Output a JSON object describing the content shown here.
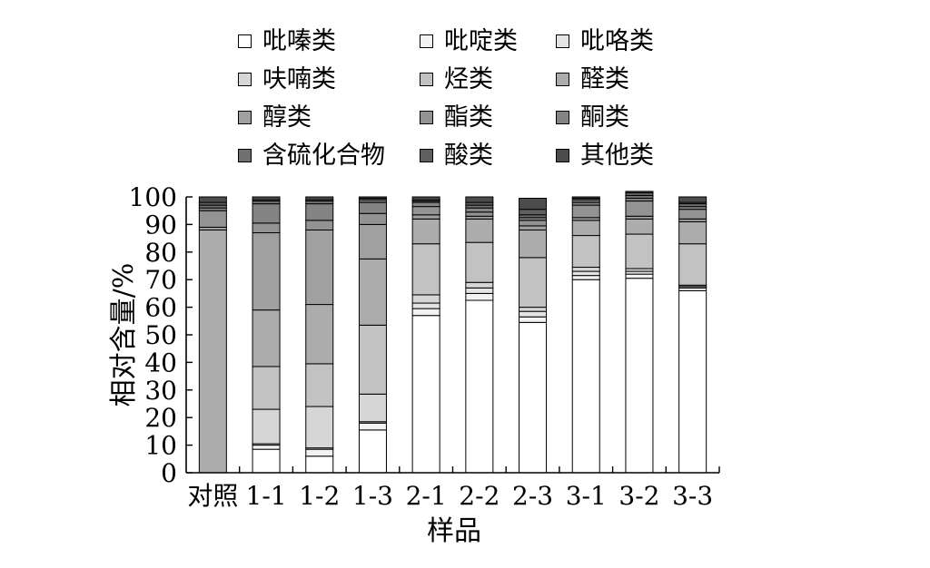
{
  "chart_data": {
    "type": "bar",
    "stacked": true,
    "title": "",
    "xlabel": "样品",
    "ylabel": "相对含量/%",
    "ylim": [
      0,
      100
    ],
    "yticks": [
      0,
      10,
      20,
      30,
      40,
      50,
      60,
      70,
      80,
      90,
      100
    ],
    "categories": [
      "对照",
      "1-1",
      "1-2",
      "1-3",
      "2-1",
      "2-2",
      "2-3",
      "3-1",
      "3-2",
      "3-3"
    ],
    "legend_position": "top",
    "series": [
      {
        "name": "吡嗪类",
        "color": "#ffffff",
        "values": [
          0,
          8.5,
          6,
          15.5,
          57,
          62.5,
          54.5,
          70,
          70.5,
          66
        ]
      },
      {
        "name": "吡啶类",
        "color": "#f2f2f2",
        "values": [
          0,
          1.5,
          2.5,
          2.5,
          2.5,
          2.5,
          2,
          1.5,
          1.5,
          1
        ]
      },
      {
        "name": "吡咯类",
        "color": "#e4e4e4",
        "values": [
          0,
          0.5,
          0.5,
          0.5,
          2,
          2,
          2,
          1.5,
          1,
          0.5
        ]
      },
      {
        "name": "呋喃类",
        "color": "#d6d6d6",
        "values": [
          0,
          12.5,
          15,
          10,
          3,
          2,
          1.5,
          1.5,
          1,
          0.5
        ]
      },
      {
        "name": "烃类",
        "color": "#c2c2c2",
        "values": [
          0,
          15.5,
          15.5,
          25,
          18.5,
          14.5,
          18,
          11.5,
          12.5,
          15
        ]
      },
      {
        "name": "醛类",
        "color": "#acacac",
        "values": [
          88,
          20.5,
          21.5,
          24,
          9,
          8.5,
          10,
          5.5,
          5.5,
          8
        ]
      },
      {
        "name": "醇类",
        "color": "#a0a0a0",
        "values": [
          1,
          28,
          27,
          12.5,
          1.5,
          1,
          1.5,
          1,
          1,
          1
        ]
      },
      {
        "name": "酯类",
        "color": "#939393",
        "values": [
          6,
          3.5,
          3.5,
          4,
          3,
          1.5,
          2,
          4.5,
          5.5,
          3.5
        ]
      },
      {
        "name": "酮类",
        "color": "#848484",
        "values": [
          1,
          7,
          6,
          4,
          1.5,
          1.5,
          1,
          1,
          1,
          1
        ]
      },
      {
        "name": "含硫化合物",
        "color": "#707070",
        "values": [
          1,
          1,
          1,
          1,
          0.5,
          1,
          1,
          1,
          1,
          1
        ]
      },
      {
        "name": "酸类",
        "color": "#5f5f5f",
        "values": [
          1,
          0.5,
          0.5,
          0.5,
          0.5,
          1,
          2,
          0.5,
          1,
          0.5
        ]
      },
      {
        "name": "其他类",
        "color": "#4c4c4c",
        "values": [
          2,
          1,
          1,
          0.5,
          1,
          2,
          4,
          0.5,
          0.5,
          2
        ]
      }
    ]
  }
}
